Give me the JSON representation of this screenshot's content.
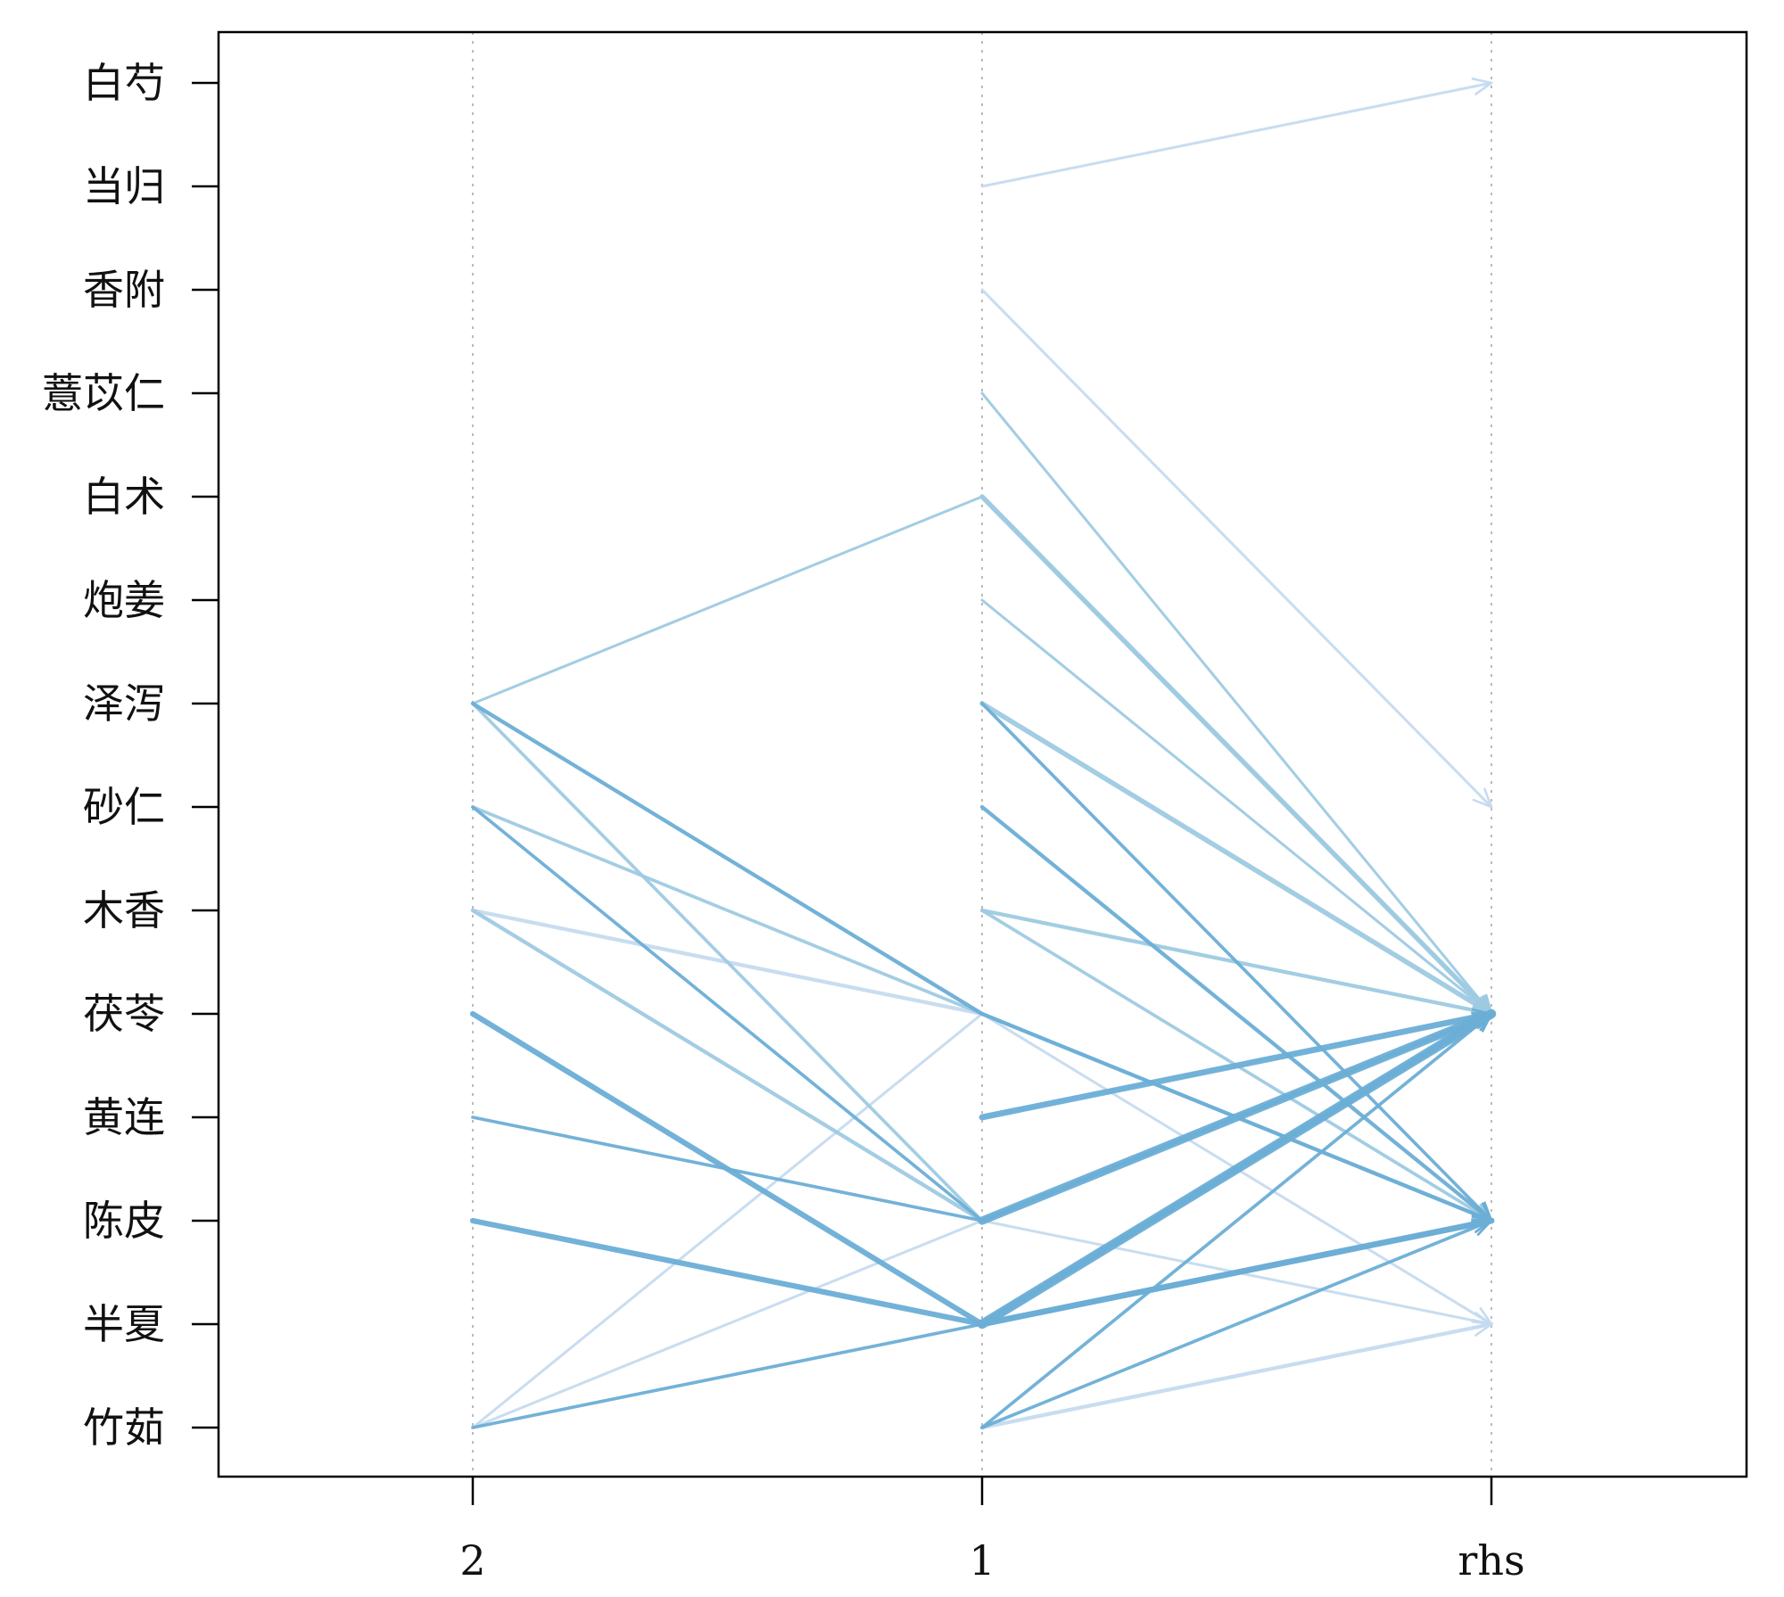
{
  "chart_data": {
    "type": "parallel-coordinates",
    "title": "",
    "x_axis": {
      "categories": [
        "2",
        "1",
        "rhs"
      ]
    },
    "y_axis": {
      "items": [
        "白芍",
        "当归",
        "香附",
        "薏苡仁",
        "白术",
        "炮姜",
        "泽泻",
        "砂仁",
        "木香",
        "茯苓",
        "黄连",
        "陈皮",
        "半夏",
        "竹茹"
      ]
    },
    "grid": "vertical dotted lines at each x category",
    "legend": "none",
    "colors": {
      "light": "#c6dbef",
      "mid": "#9ecae1",
      "strong": "#6baed6",
      "axis": "#000000",
      "grid": "#bbbbbb"
    },
    "rules": [
      {
        "path": [
          null,
          "当归",
          "白芍"
        ],
        "weight": 1,
        "color": "light"
      },
      {
        "path": [
          null,
          "香附",
          "砂仁"
        ],
        "weight": 1,
        "color": "light"
      },
      {
        "path": [
          null,
          "薏苡仁",
          "茯苓"
        ],
        "weight": 1,
        "color": "mid"
      },
      {
        "path": [
          null,
          "白术",
          "茯苓"
        ],
        "weight": 3,
        "color": "mid"
      },
      {
        "path": [
          null,
          "炮姜",
          "茯苓"
        ],
        "weight": 1,
        "color": "mid"
      },
      {
        "path": [
          null,
          "泽泻",
          "茯苓"
        ],
        "weight": 3,
        "color": "mid"
      },
      {
        "path": [
          null,
          "泽泻",
          "陈皮"
        ],
        "weight": 1.5,
        "color": "strong"
      },
      {
        "path": [
          null,
          "砂仁",
          "陈皮"
        ],
        "weight": 2,
        "color": "strong"
      },
      {
        "path": [
          null,
          "木香",
          "茯苓"
        ],
        "weight": 2,
        "color": "mid"
      },
      {
        "path": [
          null,
          "木香",
          "陈皮"
        ],
        "weight": 1.5,
        "color": "mid"
      },
      {
        "path": [
          null,
          "黄连",
          "茯苓"
        ],
        "weight": 4,
        "color": "strong"
      },
      {
        "path": [
          null,
          "陈皮",
          "茯苓"
        ],
        "weight": 6,
        "color": "strong"
      },
      {
        "path": [
          null,
          "半夏",
          "茯苓"
        ],
        "weight": 7,
        "color": "strong"
      },
      {
        "path": [
          null,
          "半夏",
          "陈皮"
        ],
        "weight": 4,
        "color": "strong"
      },
      {
        "path": [
          null,
          "竹茹",
          "茯苓"
        ],
        "weight": 1.5,
        "color": "strong"
      },
      {
        "path": [
          null,
          "竹茹",
          "陈皮"
        ],
        "weight": 1.5,
        "color": "strong"
      },
      {
        "path": [
          null,
          "竹茹",
          "半夏"
        ],
        "weight": 2,
        "color": "light"
      },
      {
        "path": [
          "泽泻",
          "白术",
          "茯苓"
        ],
        "weight": 1,
        "color": "mid"
      },
      {
        "path": [
          "泽泻",
          "茯苓",
          "陈皮"
        ],
        "weight": 2,
        "color": "strong"
      },
      {
        "path": [
          "泽泻",
          "陈皮",
          "茯苓"
        ],
        "weight": 1.5,
        "color": "mid"
      },
      {
        "path": [
          "砂仁",
          "茯苓",
          "陈皮"
        ],
        "weight": 1.5,
        "color": "mid"
      },
      {
        "path": [
          "砂仁",
          "陈皮",
          "茯苓"
        ],
        "weight": 1.5,
        "color": "strong"
      },
      {
        "path": [
          "木香",
          "茯苓",
          "陈皮"
        ],
        "weight": 2,
        "color": "light"
      },
      {
        "path": [
          "木香",
          "陈皮",
          "茯苓"
        ],
        "weight": 2,
        "color": "mid"
      },
      {
        "path": [
          "茯苓",
          "半夏",
          "陈皮"
        ],
        "weight": 3.5,
        "color": "strong"
      },
      {
        "path": [
          "黄连",
          "陈皮",
          "茯苓"
        ],
        "weight": 1.5,
        "color": "strong"
      },
      {
        "path": [
          "陈皮",
          "半夏",
          "茯苓"
        ],
        "weight": 3.5,
        "color": "strong"
      },
      {
        "path": [
          "竹茹",
          "茯苓",
          "半夏"
        ],
        "weight": 1,
        "color": "light"
      },
      {
        "path": [
          "竹茹",
          "陈皮",
          "半夏"
        ],
        "weight": 1,
        "color": "light"
      },
      {
        "path": [
          "竹茹",
          "半夏",
          "茯苓"
        ],
        "weight": 1.5,
        "color": "strong"
      }
    ]
  }
}
